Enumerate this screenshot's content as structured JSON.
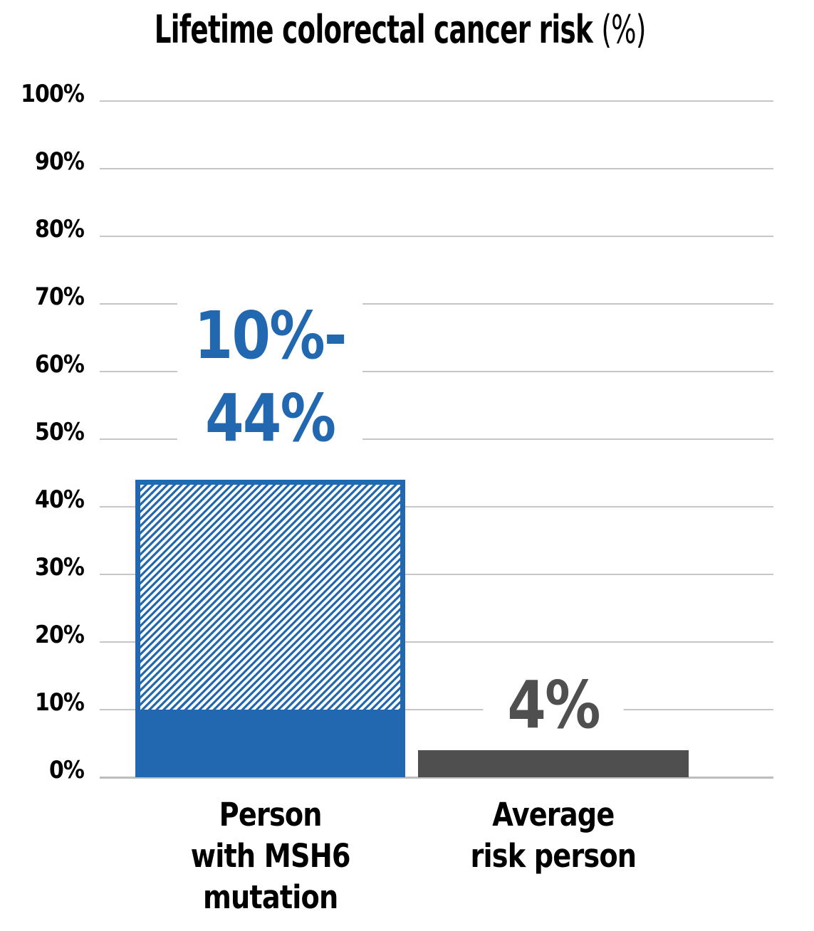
{
  "chart_data": {
    "type": "bar",
    "title": "Lifetime colorectal cancer risk (%)",
    "title_main": "Lifetime colorectal cancer risk",
    "title_suffix": "(%)",
    "categories": [
      "Person with MSH6 mutation",
      "Average risk person"
    ],
    "series": [
      {
        "name": "Person with MSH6 mutation",
        "value_min": 10,
        "value_max": 44,
        "data_label": "10%-44%",
        "label_line1": "10%-",
        "label_line2": "44%",
        "bar_style": "solid fill from 0% to 10%, diagonal hatch from 10% to 44%, blue outline",
        "color": "#2168b0",
        "category_lines": [
          "Person",
          "with MSH6",
          "mutation"
        ]
      },
      {
        "name": "Average risk person",
        "value": 4,
        "data_label": "4%",
        "bar_style": "solid fill",
        "color": "#4f4f4f",
        "category_lines": [
          "Average",
          "risk person"
        ]
      }
    ],
    "ylim": [
      0,
      100
    ],
    "ytick_step": 10,
    "ytick_labels": [
      "100%",
      "90%",
      "80%",
      "70%",
      "60%",
      "50%",
      "40%",
      "30%",
      "20%",
      "10%",
      "0%"
    ],
    "grid": true,
    "gridline_color": "#c6c6c6",
    "legend": "none",
    "background": "#ffffff"
  }
}
